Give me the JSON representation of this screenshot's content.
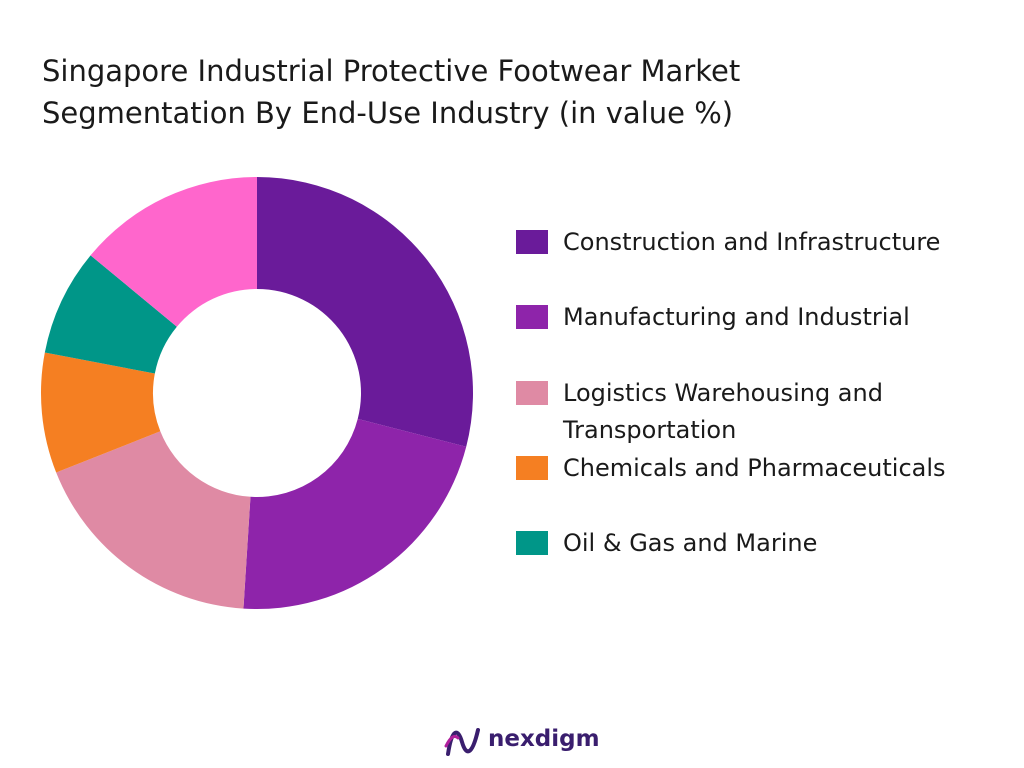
{
  "chart_data": {
    "type": "pie",
    "style": "donut",
    "title_lines": [
      "Singapore Industrial Protective Footwear Market",
      "Segmentation By End-Use Industry (in value %)"
    ],
    "categories": [
      "Construction and Infrastructure",
      "Manufacturing and Industrial",
      "Logistics Warehousing and Transportation",
      "Chemicals and Pharmaceuticals",
      "Oil & Gas and Marine"
    ],
    "legend_labels": [
      [
        "Construction and Infrastructure"
      ],
      [
        "Manufacturing and Industrial"
      ],
      [
        "Logistics Warehousing and",
        "Transportation"
      ],
      [
        "Chemicals and Pharmaceuticals"
      ],
      [
        "Oil & Gas and Marine"
      ]
    ],
    "slices": [
      {
        "label": "Construction and Infrastructure",
        "value": 29,
        "color": "#6a1b9a"
      },
      {
        "label": "Manufacturing and Industrial",
        "value": 22,
        "color": "#8e24aa"
      },
      {
        "label": "Logistics Warehousing and Transportation",
        "value": 18,
        "color": "#df8aa4"
      },
      {
        "label": "Chemicals and Pharmaceuticals",
        "value": 9,
        "color": "#f57f22"
      },
      {
        "label": "Oil & Gas and Marine",
        "value": 8,
        "color": "#009688"
      },
      {
        "label": "",
        "value": 14,
        "color": "#ff66cc"
      }
    ],
    "legend_placement": "right"
  },
  "brand": {
    "name": "nexdigm",
    "color": "#3a1e6e",
    "accent": "#b01f9c"
  }
}
